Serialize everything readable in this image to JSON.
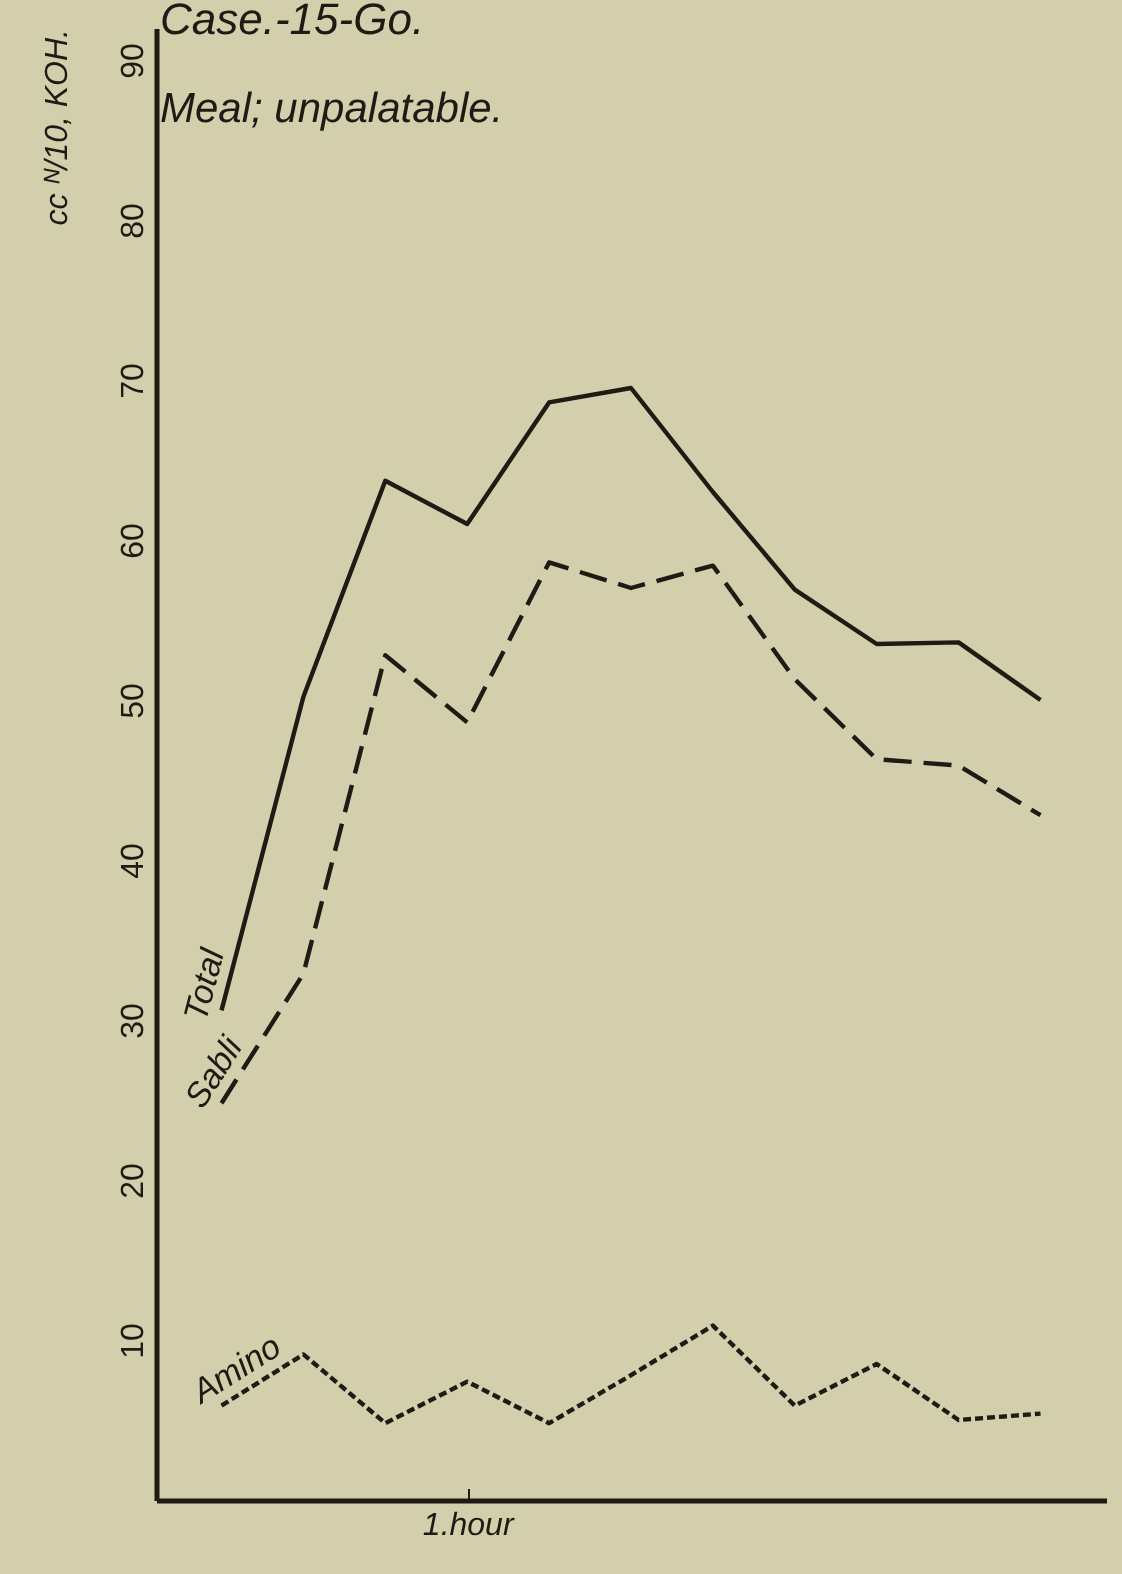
{
  "chart_data": {
    "type": "line",
    "title": "Case.-15-Go.",
    "subtitle": "Meal; unpalatable.",
    "ylabel": "cc ᴺ/10, KOH.",
    "categories": [
      null,
      null,
      null,
      "1.hour",
      null,
      null,
      null,
      null,
      null,
      null,
      null
    ],
    "series": [
      {
        "name": "Total",
        "color": "#1e1a14",
        "line_style": "solid",
        "values": [
          30.6,
          50.2,
          63.7,
          61,
          68.6,
          69.5,
          63,
          56.9,
          53.5,
          53.6,
          50
        ]
      },
      {
        "name": "Sabli",
        "color": "#1e1a14",
        "line_style": "dashed",
        "values": [
          24.8,
          32.9,
          52.8,
          48.6,
          58.6,
          57,
          58.4,
          51.3,
          46.3,
          45.9,
          42.8
        ]
      },
      {
        "name": "Amino",
        "color": "#1e1a14",
        "line_style": "dotted",
        "values": [
          5.9,
          9.1,
          4.8,
          7.4,
          4.8,
          7.8,
          10.9,
          5.9,
          8.5,
          5,
          5.4
        ]
      }
    ],
    "ylim": [
      0,
      92
    ],
    "yticks": [
      10,
      20,
      30,
      40,
      50,
      60,
      70,
      80,
      90
    ],
    "grid": false,
    "legend": false,
    "marker": "none"
  }
}
